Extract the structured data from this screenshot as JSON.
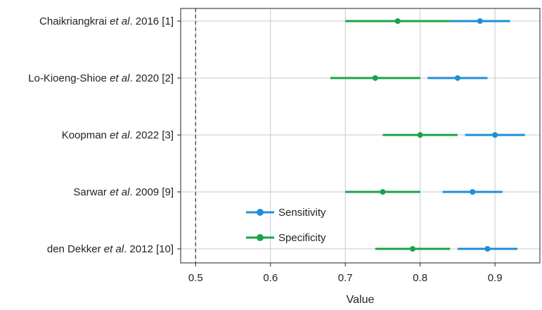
{
  "chart_data": {
    "type": "forest",
    "title": "",
    "xlabel": "Value",
    "ylabel": "",
    "xlim": [
      0.48,
      0.96
    ],
    "x_ticks": [
      "0.5",
      "0.6",
      "0.7",
      "0.8",
      "0.9"
    ],
    "reference_line": 0.5,
    "grid": true,
    "legend_position": "lower-left",
    "studies": [
      {
        "author": "Chaikriangkrai",
        "suffix": " 2016 [1]"
      },
      {
        "author": "Lo-Kioeng-Shioe",
        "suffix": " 2020 [2]"
      },
      {
        "author": "Koopman",
        "suffix": " 2022 [3]"
      },
      {
        "author": "Sarwar",
        "suffix": " 2009 [9]"
      },
      {
        "author": "den Dekker",
        "suffix": " 2012 [10]"
      }
    ],
    "etal": " et al",
    "series": [
      {
        "name": "Sensitivity",
        "color": "#1f8fd6",
        "estimates": [
          0.88,
          0.85,
          0.9,
          0.87,
          0.89
        ],
        "ci_low": [
          0.84,
          0.81,
          0.86,
          0.83,
          0.85
        ],
        "ci_high": [
          0.92,
          0.89,
          0.94,
          0.91,
          0.93
        ]
      },
      {
        "name": "Specificity",
        "color": "#1aa34a",
        "estimates": [
          0.77,
          0.74,
          0.8,
          0.75,
          0.79
        ],
        "ci_low": [
          0.7,
          0.68,
          0.75,
          0.7,
          0.74
        ],
        "ci_high": [
          0.84,
          0.8,
          0.85,
          0.8,
          0.84
        ]
      }
    ]
  }
}
